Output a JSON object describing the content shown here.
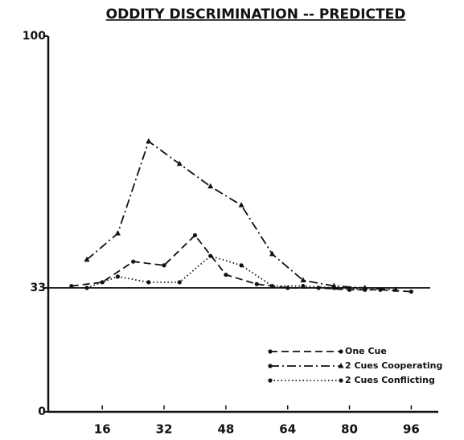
{
  "chart_data": {
    "type": "line",
    "title": "ODDITY DISCRIMINATION -- PREDICTED",
    "x": [
      8,
      16,
      24,
      32,
      40,
      48,
      56,
      64,
      72,
      80,
      88,
      96
    ],
    "series": [
      {
        "name": "One Cue",
        "color": "#111111",
        "linestyle": "dashed",
        "marker": "circle",
        "x": [
          8,
          16,
          24,
          32,
          40,
          48,
          56,
          64,
          72,
          80,
          88,
          96
        ],
        "values": [
          33.5,
          34.5,
          40,
          39,
          47,
          36.5,
          34,
          33,
          33,
          32.5,
          32.5,
          32
        ]
      },
      {
        "name": "2 Cues Cooperating",
        "color": "#111111",
        "linestyle": "dashdot",
        "marker": "triangle",
        "x": [
          12,
          20,
          28,
          36,
          44,
          52,
          60,
          68,
          76,
          84,
          92
        ],
        "values": [
          40.5,
          47.5,
          72,
          66,
          60,
          55,
          42,
          35,
          33.5,
          33,
          32.5
        ]
      },
      {
        "name": "2 Cues Conflicting",
        "color": "#111111",
        "linestyle": "dotted",
        "marker": "circle",
        "x": [
          12,
          20,
          28,
          36,
          44,
          52,
          60,
          68,
          76,
          84
        ],
        "values": [
          33,
          36,
          34.5,
          34.5,
          41.5,
          39,
          33.5,
          33.5,
          33,
          32.5
        ]
      }
    ],
    "reference_line": 33,
    "xlim": [
      2,
      103
    ],
    "xticks": [
      16,
      32,
      48,
      64,
      80,
      96
    ],
    "ylim": [
      0,
      100
    ],
    "yticks": [
      0,
      33,
      100
    ],
    "legend": "lower right"
  }
}
